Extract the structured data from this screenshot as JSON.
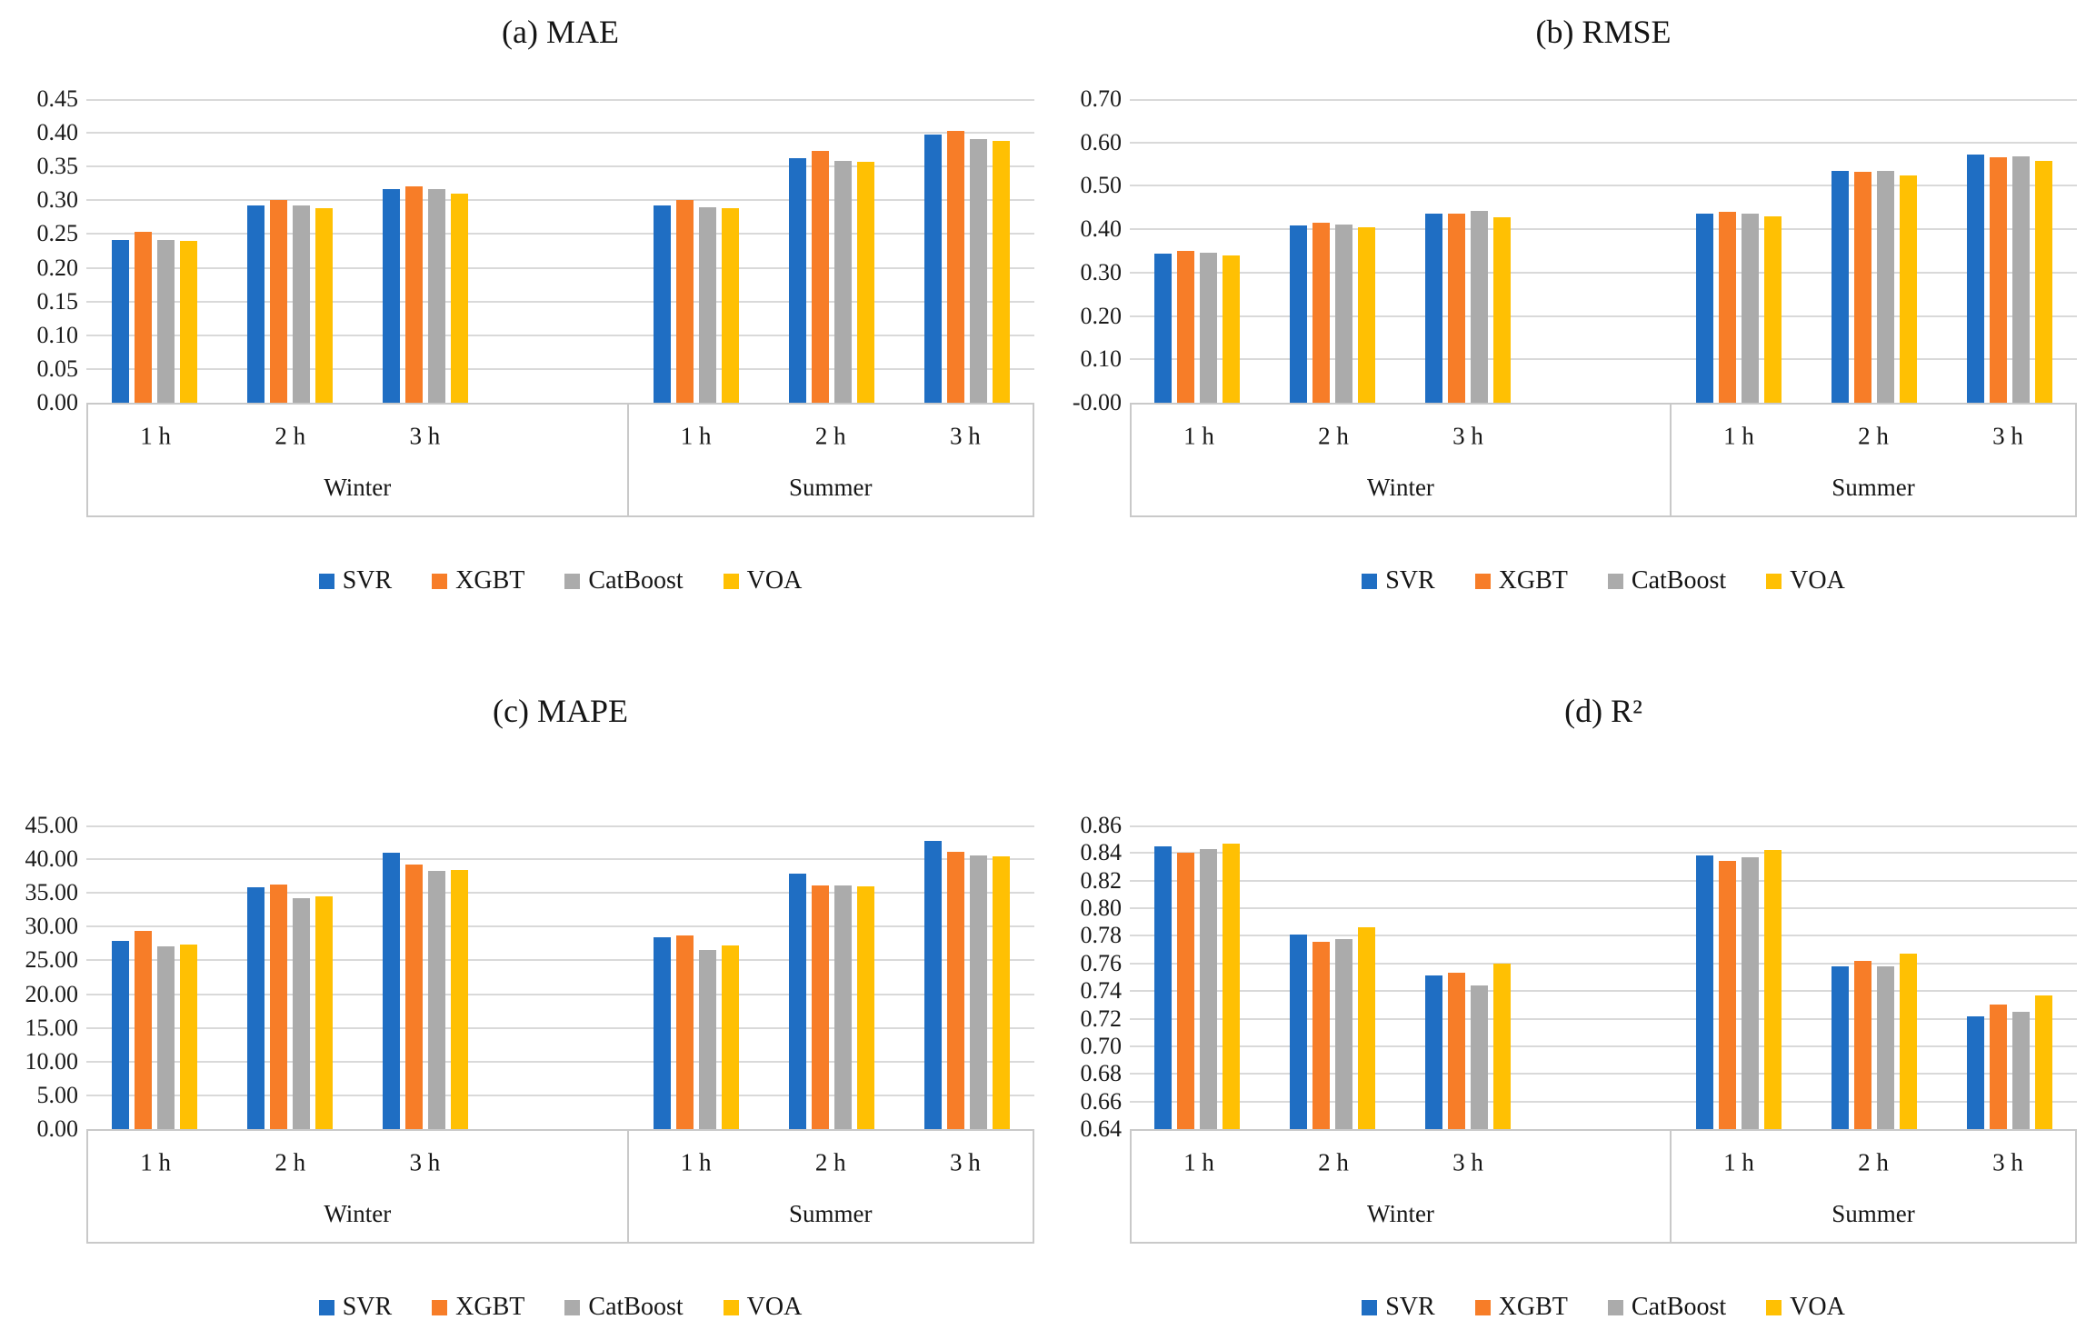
{
  "figure": {
    "background": "#ffffff",
    "gridline_color": "#d9d9d9",
    "axis_box_color": "#c9c9c9",
    "legend_items": [
      {
        "label": "SVR",
        "color": "#1f6ec3"
      },
      {
        "label": "XGBT",
        "color": "#f77d28"
      },
      {
        "label": "CatBoost",
        "color": "#ababab"
      },
      {
        "label": "VOA",
        "color": "#ffc003"
      }
    ],
    "season_groups": [
      {
        "label": "Winter",
        "slots": 4,
        "horizons": [
          "1 h",
          "2 h",
          "3 h"
        ]
      },
      {
        "label": "Summer",
        "slots": 3,
        "horizons": [
          "1 h",
          "2 h",
          "3 h"
        ]
      }
    ]
  },
  "chart_data": [
    {
      "id": "mae",
      "type": "bar",
      "title": "(a) MAE",
      "ylim": [
        0,
        0.45
      ],
      "ytick_step": 0.05,
      "ytick_decimals": 2,
      "grid": true,
      "legend_position": "bottom",
      "categories": [
        "Winter 1 h",
        "Winter 2 h",
        "Winter 3 h",
        "Summer 1 h",
        "Summer 2 h",
        "Summer 3 h"
      ],
      "series": [
        {
          "name": "SVR",
          "color": "#1f6ec3",
          "values": [
            0.241,
            0.292,
            0.316,
            0.292,
            0.362,
            0.397
          ]
        },
        {
          "name": "XGBT",
          "color": "#f77d28",
          "values": [
            0.253,
            0.301,
            0.321,
            0.301,
            0.373,
            0.403
          ]
        },
        {
          "name": "CatBoost",
          "color": "#ababab",
          "values": [
            0.241,
            0.292,
            0.316,
            0.29,
            0.358,
            0.391
          ]
        },
        {
          "name": "VOA",
          "color": "#ffc003",
          "values": [
            0.24,
            0.289,
            0.31,
            0.288,
            0.357,
            0.388
          ]
        }
      ]
    },
    {
      "id": "rmse",
      "type": "bar",
      "title": "(b) RMSE",
      "ylim": [
        0,
        0.7
      ],
      "ytick_step": 0.1,
      "ytick_decimals": 2,
      "grid": true,
      "legend_position": "bottom",
      "categories": [
        "Winter 1 h",
        "Winter 2 h",
        "Winter 3 h",
        "Summer 1 h",
        "Summer 2 h",
        "Summer 3 h"
      ],
      "series": [
        {
          "name": "SVR",
          "color": "#1f6ec3",
          "values": [
            0.343,
            0.408,
            0.435,
            0.435,
            0.535,
            0.572
          ]
        },
        {
          "name": "XGBT",
          "color": "#f77d28",
          "values": [
            0.35,
            0.414,
            0.435,
            0.441,
            0.532,
            0.566
          ]
        },
        {
          "name": "CatBoost",
          "color": "#ababab",
          "values": [
            0.346,
            0.411,
            0.442,
            0.437,
            0.535,
            0.569
          ]
        },
        {
          "name": "VOA",
          "color": "#ffc003",
          "values": [
            0.34,
            0.404,
            0.427,
            0.43,
            0.525,
            0.558
          ]
        }
      ]
    },
    {
      "id": "mape",
      "type": "bar",
      "title": "(c) MAPE",
      "ylim": [
        0,
        45
      ],
      "ytick_step": 5,
      "ytick_decimals": 2,
      "grid": true,
      "legend_position": "bottom",
      "categories": [
        "Winter 1 h",
        "Winter 2 h",
        "Winter 3 h",
        "Summer 1 h",
        "Summer 2 h",
        "Summer 3 h"
      ],
      "series": [
        {
          "name": "SVR",
          "color": "#1f6ec3",
          "values": [
            27.9,
            35.8,
            41.0,
            28.4,
            37.9,
            42.7
          ]
        },
        {
          "name": "XGBT",
          "color": "#f77d28",
          "values": [
            29.4,
            36.2,
            39.2,
            28.7,
            36.1,
            41.1
          ]
        },
        {
          "name": "CatBoost",
          "color": "#ababab",
          "values": [
            27.1,
            34.2,
            38.2,
            26.6,
            36.1,
            40.5
          ]
        },
        {
          "name": "VOA",
          "color": "#ffc003",
          "values": [
            27.4,
            34.5,
            38.4,
            27.2,
            36.0,
            40.4
          ]
        }
      ]
    },
    {
      "id": "r2",
      "type": "bar",
      "title": "(d) R²",
      "ylim": [
        0.64,
        0.86
      ],
      "ytick_step": 0.02,
      "ytick_decimals": 2,
      "grid": true,
      "legend_position": "bottom",
      "categories": [
        "Winter 1 h",
        "Winter 2 h",
        "Winter 3 h",
        "Summer 1 h",
        "Summer 2 h",
        "Summer 3 h"
      ],
      "series": [
        {
          "name": "SVR",
          "color": "#1f6ec3",
          "values": [
            0.845,
            0.781,
            0.751,
            0.838,
            0.758,
            0.722
          ]
        },
        {
          "name": "XGBT",
          "color": "#f77d28",
          "values": [
            0.84,
            0.776,
            0.753,
            0.834,
            0.762,
            0.73
          ]
        },
        {
          "name": "CatBoost",
          "color": "#ababab",
          "values": [
            0.843,
            0.778,
            0.744,
            0.837,
            0.758,
            0.725
          ]
        },
        {
          "name": "VOA",
          "color": "#ffc003",
          "values": [
            0.847,
            0.786,
            0.76,
            0.842,
            0.767,
            0.737
          ]
        }
      ]
    }
  ]
}
